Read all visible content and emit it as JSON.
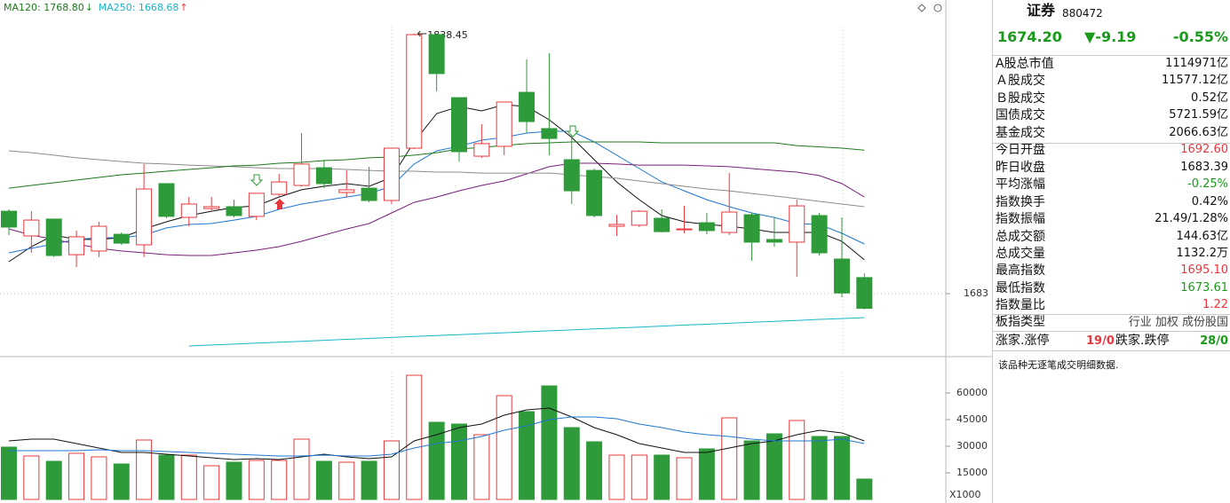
{
  "chart_data": [
    {
      "type": "candlestick",
      "open": [
        1732.3,
        1717.5,
        1727.6,
        1706.3,
        1708.5,
        1718.5,
        1712.2,
        1748.8,
        1728.6,
        1733.9,
        1735.0,
        1729.2,
        1742.4,
        1747.7,
        1758.3,
        1743.5,
        1746.1,
        1738.7,
        1770.0,
        1837.9,
        1800.2,
        1765.2,
        1771.1,
        1803.4,
        1781.7,
        1763.1,
        1756.7,
        1723.3,
        1723.9,
        1728.1,
        1721.2,
        1725.4,
        1719.6,
        1730.2,
        1715.4,
        1713.8,
        1729.7,
        1703.7,
        1692.6
      ],
      "high": [
        1733.4,
        1732.3,
        1727.6,
        1720.7,
        1726.0,
        1719.6,
        1760.5,
        1748.8,
        1740.8,
        1740.8,
        1739.2,
        1743.0,
        1754.6,
        1779.0,
        1763.1,
        1756.7,
        1758.9,
        1770.0,
        1838.45,
        1837.9,
        1800.2,
        1784.3,
        1797.6,
        1823.1,
        1826.8,
        1780.1,
        1757.8,
        1730.2,
        1732.9,
        1733.4,
        1735.5,
        1731.3,
        1755.2,
        1731.3,
        1728.6,
        1739.2,
        1731.3,
        1728.6,
        1695.1
      ],
      "low": [
        1718.0,
        1707.4,
        1704.8,
        1698.9,
        1704.8,
        1712.2,
        1704.8,
        1728.1,
        1723.3,
        1732.9,
        1728.6,
        1727.0,
        1741.4,
        1747.2,
        1746.1,
        1740.8,
        1737.6,
        1736.6,
        1769.5,
        1804.0,
        1762.0,
        1764.2,
        1765.8,
        1779.0,
        1765.8,
        1736.6,
        1728.6,
        1717.5,
        1722.8,
        1719.6,
        1719.1,
        1718.5,
        1718.0,
        1702.6,
        1711.1,
        1693.1,
        1705.8,
        1680.9,
        1673.61
      ],
      "close": [
        1722.8,
        1727.0,
        1705.8,
        1717.0,
        1723.3,
        1713.2,
        1745.6,
        1729.2,
        1736.6,
        1735.0,
        1729.7,
        1743.0,
        1749.8,
        1760.5,
        1748.8,
        1745.1,
        1738.7,
        1770.0,
        1837.9,
        1814.6,
        1767.9,
        1772.7,
        1797.6,
        1785.9,
        1775.8,
        1744.5,
        1729.7,
        1724.4,
        1732.3,
        1720.1,
        1721.7,
        1720.7,
        1731.8,
        1713.8,
        1713.8,
        1735.5,
        1707.4,
        1683.39,
        1674.2
      ],
      "high_labels": [
        null,
        null,
        null,
        null,
        null,
        null,
        null,
        null,
        null,
        null,
        null,
        null,
        null,
        null,
        null,
        null,
        null,
        null,
        "1838.45",
        null,
        null,
        null,
        null,
        null,
        null,
        null,
        null,
        null,
        null,
        null,
        null,
        null,
        null,
        null,
        null,
        null,
        null,
        null,
        null
      ],
      "up_color": "#e8383d",
      "down_color": "#2f9a3a",
      "series": [
        {
          "color": "#111111",
          "values": [
            1702.1,
            1711.1,
            1718.0,
            1715.4,
            1715.4,
            1716.4,
            1721.7,
            1726.0,
            1729.7,
            1732.3,
            1734.5,
            1735.5,
            1740.8,
            1745.1,
            1747.2,
            1748.8,
            1747.2,
            1752.5,
            1773.7,
            1790.7,
            1794.9,
            1792.3,
            1796.0,
            1794.9,
            1787.0,
            1776.4,
            1763.1,
            1749.8,
            1739.2,
            1729.7,
            1726.0,
            1724.4,
            1723.3,
            1721.7,
            1719.6,
            1719.6,
            1719.6,
            1714.3,
            1703.2
          ]
        },
        {
          "color": "#1e78d2",
          "values": [
            1707.4,
            1710.1,
            1712.7,
            1715.4,
            1716.4,
            1716.4,
            1718.0,
            1722.3,
            1724.4,
            1724.9,
            1727.0,
            1729.2,
            1733.4,
            1736.6,
            1738.7,
            1740.8,
            1742.9,
            1747.2,
            1760.5,
            1768.4,
            1771.1,
            1774.8,
            1776.4,
            1779.0,
            1780.1,
            1780.1,
            1773.7,
            1765.8,
            1757.8,
            1749.8,
            1744.5,
            1739.2,
            1735.0,
            1731.3,
            1728.6,
            1724.9,
            1724.4,
            1719.1,
            1712.7
          ]
        },
        {
          "color": "#7a1f7a",
          "values": [
            1721.7,
            1718.0,
            1715.4,
            1712.7,
            1710.1,
            1708.5,
            1707.4,
            1706.3,
            1705.8,
            1705.8,
            1707.4,
            1709.0,
            1711.1,
            1714.3,
            1718.0,
            1721.7,
            1724.9,
            1731.3,
            1737.6,
            1740.8,
            1744.5,
            1747.7,
            1750.4,
            1754.6,
            1758.9,
            1761.0,
            1761.0,
            1760.5,
            1759.9,
            1759.9,
            1759.9,
            1759.4,
            1758.9,
            1757.8,
            1756.7,
            1755.7,
            1753.6,
            1748.8,
            1740.8
          ]
        },
        {
          "color": "#8c8c8c",
          "values": [
            1768.4,
            1767.3,
            1765.8,
            1764.2,
            1763.1,
            1762.0,
            1761.0,
            1760.5,
            1759.9,
            1759.4,
            1758.9,
            1758.3,
            1757.8,
            1757.8,
            1757.8,
            1757.3,
            1756.7,
            1756.2,
            1756.2,
            1755.7,
            1755.7,
            1755.1,
            1755.1,
            1755.1,
            1755.1,
            1754.1,
            1753.0,
            1752.0,
            1750.4,
            1748.8,
            1747.2,
            1745.6,
            1744.5,
            1742.9,
            1741.4,
            1739.8,
            1738.2,
            1736.6,
            1735.0
          ]
        },
        {
          "name": "MA120: 1768.80",
          "trend_arrow": "↓",
          "arrow_color": "#1f8a1f",
          "color": "#1c7a1c",
          "values": [
            1746.1,
            1747.7,
            1749.3,
            1750.9,
            1752.5,
            1754.1,
            1755.1,
            1756.2,
            1757.3,
            1758.3,
            1759.4,
            1759.9,
            1761.0,
            1761.5,
            1762.6,
            1763.1,
            1764.2,
            1764.7,
            1765.8,
            1767.3,
            1769.5,
            1770.5,
            1771.6,
            1772.7,
            1773.2,
            1773.7,
            1773.7,
            1773.7,
            1773.7,
            1773.2,
            1773.2,
            1773.2,
            1773.2,
            1773.2,
            1773.2,
            1771.5,
            1770.8,
            1770.0,
            1768.8
          ]
        },
        {
          "name": "MA250: 1668.68",
          "trend_arrow": "↑",
          "arrow_color": "#e8383d",
          "color": "#19b5c8",
          "values": [
            null,
            null,
            null,
            null,
            null,
            null,
            null,
            null,
            1651.7,
            1652.3,
            1652.8,
            1653.4,
            1654.0,
            1654.5,
            1655.1,
            1655.7,
            1656.2,
            1656.8,
            1657.4,
            1657.9,
            1658.5,
            1659.1,
            1659.6,
            1660.2,
            1660.8,
            1661.3,
            1661.9,
            1662.5,
            1663.0,
            1663.6,
            1664.2,
            1664.7,
            1665.3,
            1665.9,
            1666.4,
            1667.0,
            1667.6,
            1668.1,
            1668.68
          ]
        }
      ],
      "ylim": [
        1646.4,
        1858.6
      ],
      "yticks": [
        1683
      ],
      "grid": true
    },
    {
      "type": "bar",
      "values": [
        29500,
        24500,
        21500,
        26000,
        24000,
        20000,
        33500,
        25000,
        25000,
        19000,
        21000,
        22000,
        22000,
        34000,
        21500,
        21000,
        21500,
        33000,
        70000,
        43500,
        42500,
        36500,
        58500,
        49500,
        64000,
        40500,
        32500,
        25000,
        25000,
        25000,
        23500,
        28500,
        46000,
        33000,
        37000,
        44500,
        35500,
        35500,
        11500
      ],
      "series": [
        {
          "color": "#111111",
          "values": [
            33000,
            34000,
            34000,
            31500,
            29000,
            26500,
            26500,
            25500,
            24500,
            23500,
            22500,
            23000,
            22500,
            24000,
            25500,
            24000,
            23000,
            24000,
            33000,
            36500,
            40500,
            42500,
            47500,
            50500,
            51500,
            46500,
            40500,
            36500,
            31500,
            29000,
            26500,
            26500,
            29000,
            31500,
            33000,
            36500,
            39000,
            37500,
            33000
          ]
        },
        {
          "color": "#1e78d2",
          "values": [
            27500,
            27500,
            27500,
            27500,
            28000,
            27500,
            27500,
            27000,
            26500,
            26000,
            25500,
            25000,
            24500,
            24500,
            25000,
            24500,
            24500,
            25500,
            29000,
            31500,
            33000,
            35500,
            39000,
            41500,
            45000,
            46500,
            46500,
            45500,
            42500,
            40500,
            38000,
            36500,
            35500,
            34000,
            33000,
            33000,
            33000,
            34000,
            31500
          ]
        }
      ],
      "ylim": [
        0,
        79000
      ],
      "yticks": [
        15000,
        30000,
        45000,
        60000
      ],
      "unit_label": "X1000",
      "grid": false
    }
  ],
  "panel": {
    "title": "证券",
    "code": "880472",
    "price": "1674.20",
    "change": "▼-9.19",
    "change_pct": "-0.55%",
    "quote_color": "#1a9a1a",
    "rows": [
      {
        "label": "A股总市值",
        "value": "1114971亿",
        "color": "#111111"
      },
      {
        "label": "Ａ股成交",
        "value": "11577.12亿",
        "color": "#111111"
      },
      {
        "label": "Ｂ股成交",
        "value": "0.52亿",
        "color": "#111111"
      },
      {
        "label": "国债成交",
        "value": "5721.59亿",
        "color": "#111111"
      },
      {
        "label": "基金成交",
        "value": "2066.63亿",
        "color": "#111111"
      },
      {
        "label": "今日开盘",
        "value": "1692.60",
        "color": "#e8383d"
      },
      {
        "label": "昨日收盘",
        "value": "1683.39",
        "color": "#111111"
      },
      {
        "label": "平均涨幅",
        "value": "-0.25%",
        "color": "#1a9a1a"
      },
      {
        "label": "指数换手",
        "value": "0.42%",
        "color": "#111111"
      },
      {
        "label": "指数振幅",
        "value": "21.49/1.28%",
        "color": "#111111"
      },
      {
        "label": "总成交额",
        "value": "144.63亿",
        "color": "#111111"
      },
      {
        "label": "总成交量",
        "value": "1132.2万",
        "color": "#111111"
      },
      {
        "label": "最高指数",
        "value": "1695.10",
        "color": "#e8383d"
      },
      {
        "label": "最低指数",
        "value": "1673.61",
        "color": "#1a9a1a"
      },
      {
        "label": "指数量比",
        "value": "1.22",
        "color": "#e8383d"
      }
    ],
    "board_label": "板指类型",
    "board_value": "行业 加权 成份股国",
    "up_label": "涨家.涨停",
    "up_value": "19/0",
    "down_label": "跌家.跌停",
    "down_value": "28/0",
    "note": "该品种无逐笔成交明细数据."
  }
}
